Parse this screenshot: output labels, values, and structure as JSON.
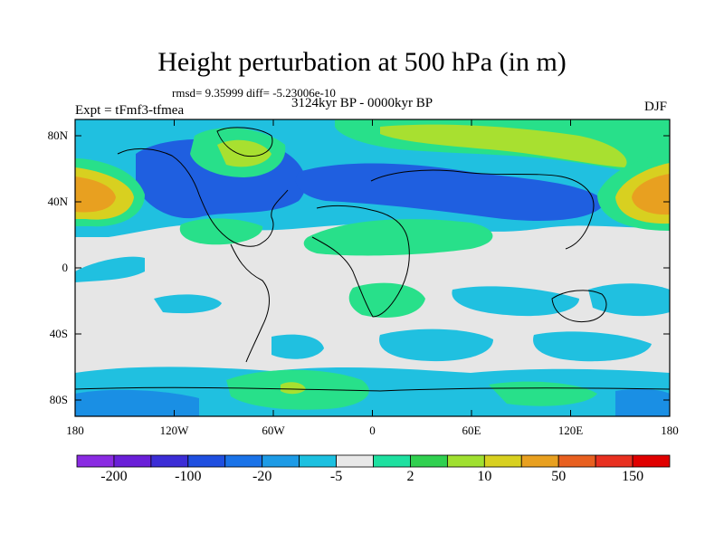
{
  "title": "Height perturbation at 500 hPa (in m)",
  "stats": "rmsd= 9.35999 diff= -5.23006e-10",
  "period": "3124kyr BP - 0000kyr BP",
  "experiment": "Expt = tFmf3-tfmea",
  "season": "DJF",
  "lat_labels": [
    "80N",
    "40N",
    "0",
    "40S",
    "80S"
  ],
  "lon_labels": [
    "180",
    "120W",
    "60W",
    "0",
    "60E",
    "120E",
    "180"
  ],
  "colorbar": {
    "labels": [
      "-200",
      "-100",
      "-20",
      "-5",
      "2",
      "10",
      "50",
      "150"
    ],
    "colors": [
      "#8a2be2",
      "#6a1fd8",
      "#3c2dd6",
      "#1f4fe0",
      "#1a73e8",
      "#1d9be6",
      "#1cc0e0",
      "#e8e8e8",
      "#1ee0a0",
      "#30d050",
      "#a0e030",
      "#d8d020",
      "#e8a020",
      "#e86020",
      "#e83020",
      "#e00000"
    ]
  },
  "field_colors": {
    "bg": "#e6e6e6",
    "lightblue": "#20c0e0",
    "blue": "#1a8fe4",
    "darkblue": "#1f5fe0",
    "green": "#28e08a",
    "lime": "#a8e030",
    "yellow": "#d8d020",
    "orange": "#e8a020"
  }
}
